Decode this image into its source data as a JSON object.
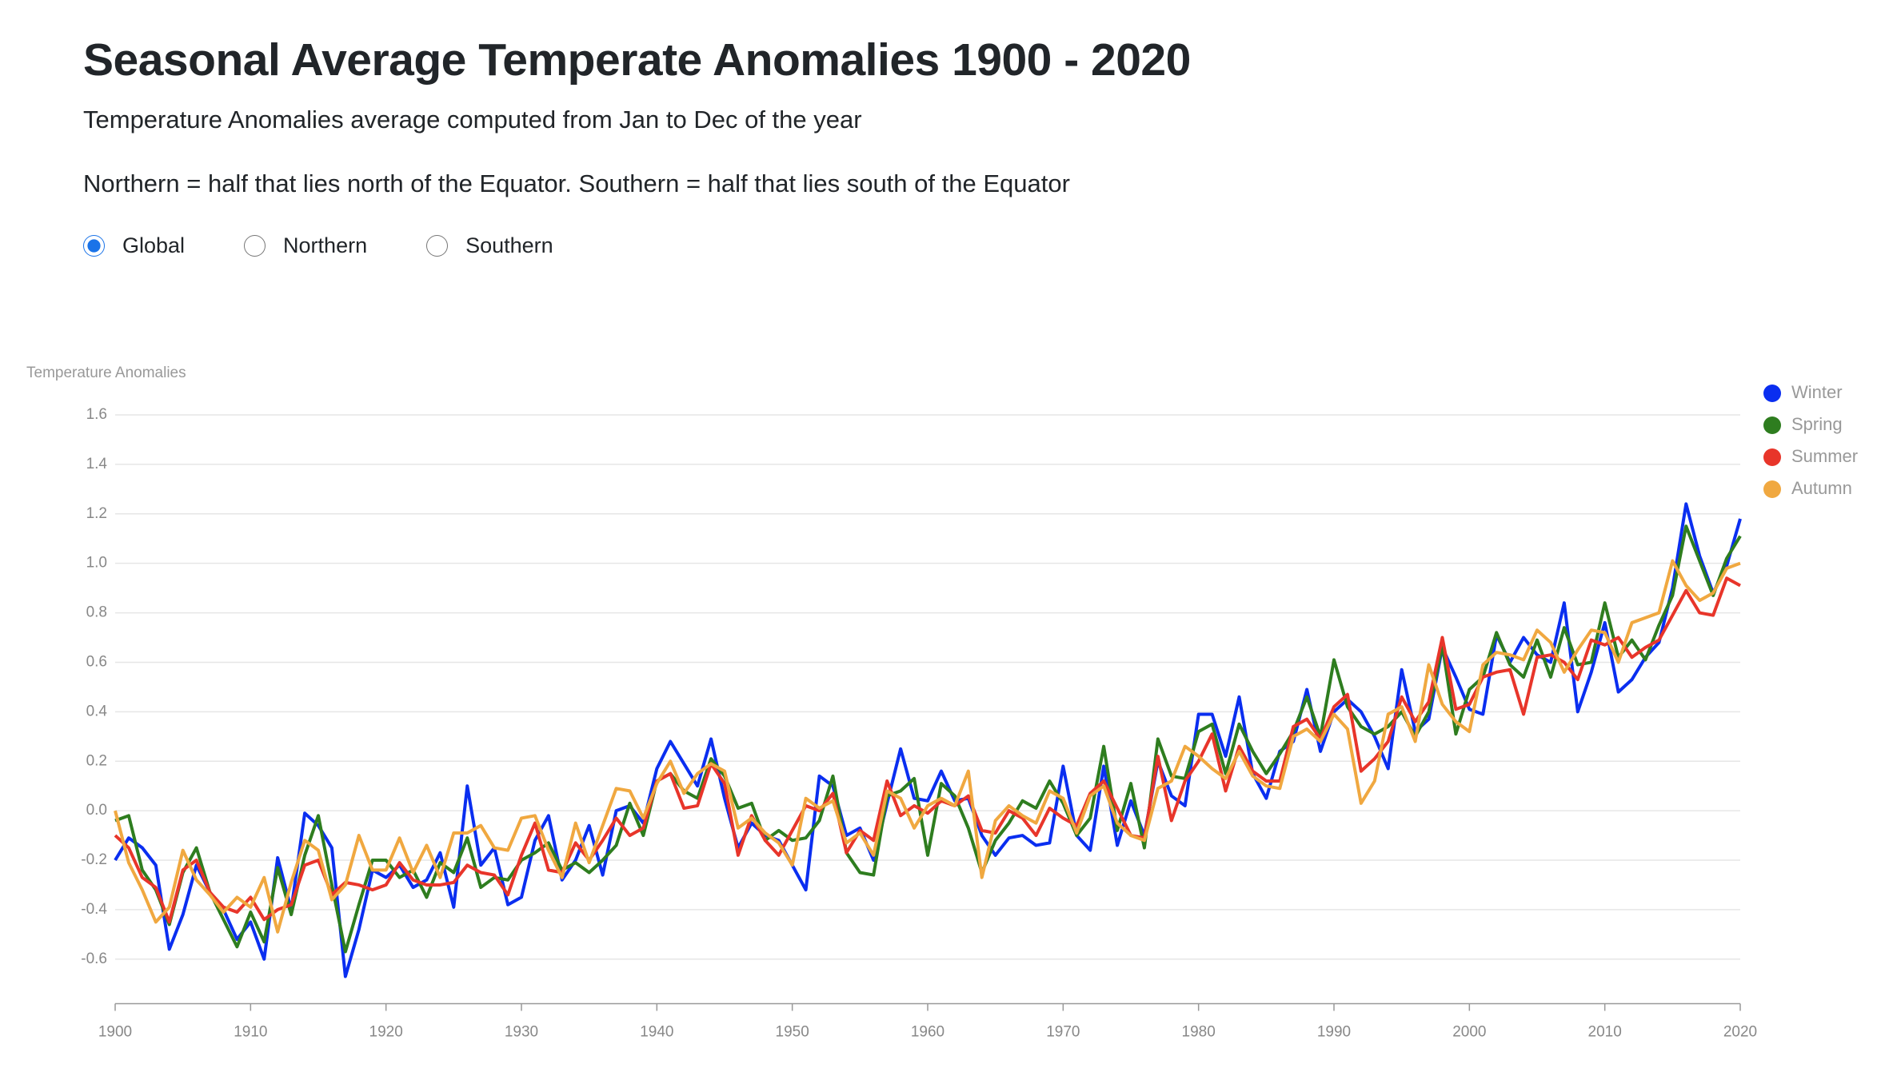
{
  "header": {
    "title": "Seasonal Average Temperate Anomalies 1900 - 2020",
    "subtitle": "Temperature Anomalies average computed from Jan to Dec of the year",
    "note": "Northern = half that lies north of the Equator. Southern = half that lies south of the Equator"
  },
  "controls": {
    "options": [
      "Global",
      "Northern",
      "Southern"
    ],
    "selected": "Global"
  },
  "chart_data": {
    "type": "line",
    "y_label": "Temperature Anomalies",
    "x": [
      1900,
      1901,
      1902,
      1903,
      1904,
      1905,
      1906,
      1907,
      1908,
      1909,
      1910,
      1911,
      1912,
      1913,
      1914,
      1915,
      1916,
      1917,
      1918,
      1919,
      1920,
      1921,
      1922,
      1923,
      1924,
      1925,
      1926,
      1927,
      1928,
      1929,
      1930,
      1931,
      1932,
      1933,
      1934,
      1935,
      1936,
      1937,
      1938,
      1939,
      1940,
      1941,
      1942,
      1943,
      1944,
      1945,
      1946,
      1947,
      1948,
      1949,
      1950,
      1951,
      1952,
      1953,
      1954,
      1955,
      1956,
      1957,
      1958,
      1959,
      1960,
      1961,
      1962,
      1963,
      1964,
      1965,
      1966,
      1967,
      1968,
      1969,
      1970,
      1971,
      1972,
      1973,
      1974,
      1975,
      1976,
      1977,
      1978,
      1979,
      1980,
      1981,
      1982,
      1983,
      1984,
      1985,
      1986,
      1987,
      1988,
      1989,
      1990,
      1991,
      1992,
      1993,
      1994,
      1995,
      1996,
      1997,
      1998,
      1999,
      2000,
      2001,
      2002,
      2003,
      2004,
      2005,
      2006,
      2007,
      2008,
      2009,
      2010,
      2011,
      2012,
      2013,
      2014,
      2015,
      2016,
      2017,
      2018,
      2019,
      2020
    ],
    "xlim": [
      1900,
      2020
    ],
    "xticks": [
      1900,
      1910,
      1920,
      1930,
      1940,
      1950,
      1960,
      1970,
      1980,
      1990,
      2000,
      2010,
      2020
    ],
    "ylim": [
      -0.78,
      1.6
    ],
    "yticks": [
      -0.6,
      -0.4,
      -0.2,
      0.0,
      0.2,
      0.4,
      0.6,
      0.8,
      1.0,
      1.2,
      1.4,
      1.6
    ],
    "grid": true,
    "legend": "right",
    "series": [
      {
        "name": "Winter",
        "color": "#0a2ef0",
        "values": [
          -0.2,
          -0.11,
          -0.15,
          -0.22,
          -0.56,
          -0.42,
          -0.22,
          -0.33,
          -0.4,
          -0.52,
          -0.45,
          -0.6,
          -0.19,
          -0.4,
          -0.01,
          -0.06,
          -0.15,
          -0.67,
          -0.48,
          -0.24,
          -0.27,
          -0.22,
          -0.31,
          -0.28,
          -0.17,
          -0.39,
          0.1,
          -0.22,
          -0.15,
          -0.38,
          -0.35,
          -0.12,
          -0.02,
          -0.28,
          -0.2,
          -0.06,
          -0.26,
          0.0,
          0.02,
          -0.05,
          0.17,
          0.28,
          0.19,
          0.1,
          0.29,
          0.05,
          -0.15,
          -0.05,
          -0.1,
          -0.12,
          -0.22,
          -0.32,
          0.14,
          0.1,
          -0.1,
          -0.07,
          -0.2,
          0.03,
          0.25,
          0.05,
          0.04,
          0.16,
          0.04,
          0.05,
          -0.1,
          -0.18,
          -0.11,
          -0.1,
          -0.14,
          -0.13,
          0.18,
          -0.1,
          -0.16,
          0.18,
          -0.14,
          0.04,
          -0.1,
          0.2,
          0.06,
          0.02,
          0.39,
          0.39,
          0.22,
          0.46,
          0.15,
          0.05,
          0.24,
          0.28,
          0.49,
          0.24,
          0.4,
          0.45,
          0.4,
          0.3,
          0.17,
          0.57,
          0.32,
          0.37,
          0.66,
          0.54,
          0.41,
          0.39,
          0.71,
          0.6,
          0.7,
          0.63,
          0.6,
          0.84,
          0.4,
          0.56,
          0.76,
          0.48,
          0.53,
          0.62,
          0.68,
          0.9,
          1.24,
          1.03,
          0.88,
          0.99,
          1.18
        ]
      },
      {
        "name": "Spring",
        "color": "#2e7d1f",
        "values": [
          -0.04,
          -0.02,
          -0.24,
          -0.32,
          -0.46,
          -0.25,
          -0.15,
          -0.33,
          -0.44,
          -0.55,
          -0.41,
          -0.53,
          -0.23,
          -0.42,
          -0.18,
          -0.02,
          -0.3,
          -0.57,
          -0.38,
          -0.2,
          -0.2,
          -0.27,
          -0.24,
          -0.35,
          -0.21,
          -0.25,
          -0.11,
          -0.31,
          -0.27,
          -0.28,
          -0.2,
          -0.17,
          -0.13,
          -0.24,
          -0.21,
          -0.25,
          -0.2,
          -0.14,
          0.03,
          -0.1,
          0.12,
          0.15,
          0.08,
          0.05,
          0.21,
          0.14,
          0.01,
          0.03,
          -0.12,
          -0.08,
          -0.12,
          -0.11,
          -0.04,
          0.14,
          -0.17,
          -0.25,
          -0.26,
          0.06,
          0.08,
          0.13,
          -0.18,
          0.11,
          0.06,
          -0.07,
          -0.25,
          -0.12,
          -0.05,
          0.04,
          0.01,
          0.12,
          0.03,
          -0.1,
          -0.03,
          0.26,
          -0.08,
          0.11,
          -0.15,
          0.29,
          0.14,
          0.13,
          0.32,
          0.35,
          0.15,
          0.35,
          0.24,
          0.15,
          0.23,
          0.32,
          0.46,
          0.3,
          0.61,
          0.42,
          0.34,
          0.31,
          0.34,
          0.4,
          0.3,
          0.4,
          0.67,
          0.31,
          0.49,
          0.54,
          0.72,
          0.59,
          0.54,
          0.69,
          0.54,
          0.74,
          0.59,
          0.6,
          0.84,
          0.62,
          0.69,
          0.61,
          0.75,
          0.87,
          1.15,
          1.01,
          0.87,
          1.02,
          1.11
        ]
      },
      {
        "name": "Summer",
        "color": "#e8352a",
        "values": [
          -0.1,
          -0.15,
          -0.27,
          -0.31,
          -0.45,
          -0.24,
          -0.2,
          -0.33,
          -0.39,
          -0.41,
          -0.35,
          -0.44,
          -0.4,
          -0.38,
          -0.22,
          -0.2,
          -0.34,
          -0.29,
          -0.3,
          -0.32,
          -0.3,
          -0.21,
          -0.28,
          -0.3,
          -0.3,
          -0.29,
          -0.22,
          -0.25,
          -0.26,
          -0.34,
          -0.18,
          -0.05,
          -0.24,
          -0.25,
          -0.13,
          -0.2,
          -0.12,
          -0.03,
          -0.1,
          -0.07,
          0.12,
          0.15,
          0.01,
          0.02,
          0.19,
          0.11,
          -0.18,
          -0.02,
          -0.12,
          -0.18,
          -0.08,
          0.02,
          0.0,
          0.07,
          -0.17,
          -0.08,
          -0.12,
          0.12,
          -0.02,
          0.02,
          -0.01,
          0.04,
          0.02,
          0.06,
          -0.08,
          -0.09,
          0.0,
          -0.03,
          -0.1,
          0.01,
          -0.03,
          -0.06,
          0.07,
          0.12,
          0.01,
          -0.1,
          -0.11,
          0.22,
          -0.04,
          0.12,
          0.2,
          0.31,
          0.08,
          0.26,
          0.16,
          0.12,
          0.12,
          0.34,
          0.37,
          0.29,
          0.42,
          0.47,
          0.16,
          0.21,
          0.28,
          0.46,
          0.36,
          0.44,
          0.7,
          0.41,
          0.43,
          0.54,
          0.56,
          0.57,
          0.39,
          0.62,
          0.63,
          0.6,
          0.53,
          0.69,
          0.67,
          0.7,
          0.62,
          0.66,
          0.69,
          0.79,
          0.89,
          0.8,
          0.79,
          0.94,
          0.91
        ]
      },
      {
        "name": "Autumn",
        "color": "#f0a840",
        "values": [
          0.0,
          -0.21,
          -0.32,
          -0.45,
          -0.39,
          -0.16,
          -0.28,
          -0.34,
          -0.41,
          -0.35,
          -0.39,
          -0.27,
          -0.49,
          -0.29,
          -0.12,
          -0.16,
          -0.36,
          -0.3,
          -0.1,
          -0.24,
          -0.24,
          -0.11,
          -0.25,
          -0.14,
          -0.27,
          -0.09,
          -0.09,
          -0.06,
          -0.15,
          -0.16,
          -0.03,
          -0.02,
          -0.16,
          -0.27,
          -0.05,
          -0.21,
          -0.06,
          0.09,
          0.08,
          -0.03,
          0.11,
          0.2,
          0.07,
          0.15,
          0.19,
          0.16,
          -0.07,
          -0.03,
          -0.09,
          -0.13,
          -0.22,
          0.05,
          0.01,
          0.04,
          -0.13,
          -0.09,
          -0.18,
          0.08,
          0.05,
          -0.07,
          0.02,
          0.05,
          0.02,
          0.16,
          -0.27,
          -0.04,
          0.02,
          -0.02,
          -0.05,
          0.08,
          0.05,
          -0.09,
          0.06,
          0.1,
          -0.05,
          -0.1,
          -0.12,
          0.09,
          0.12,
          0.26,
          0.22,
          0.17,
          0.13,
          0.24,
          0.14,
          0.1,
          0.09,
          0.3,
          0.33,
          0.28,
          0.39,
          0.33,
          0.03,
          0.12,
          0.39,
          0.42,
          0.28,
          0.59,
          0.43,
          0.36,
          0.32,
          0.59,
          0.64,
          0.63,
          0.61,
          0.73,
          0.68,
          0.56,
          0.65,
          0.73,
          0.72,
          0.6,
          0.76,
          0.78,
          0.8,
          1.01,
          0.91,
          0.85,
          0.88,
          0.98,
          1.0
        ]
      }
    ]
  }
}
